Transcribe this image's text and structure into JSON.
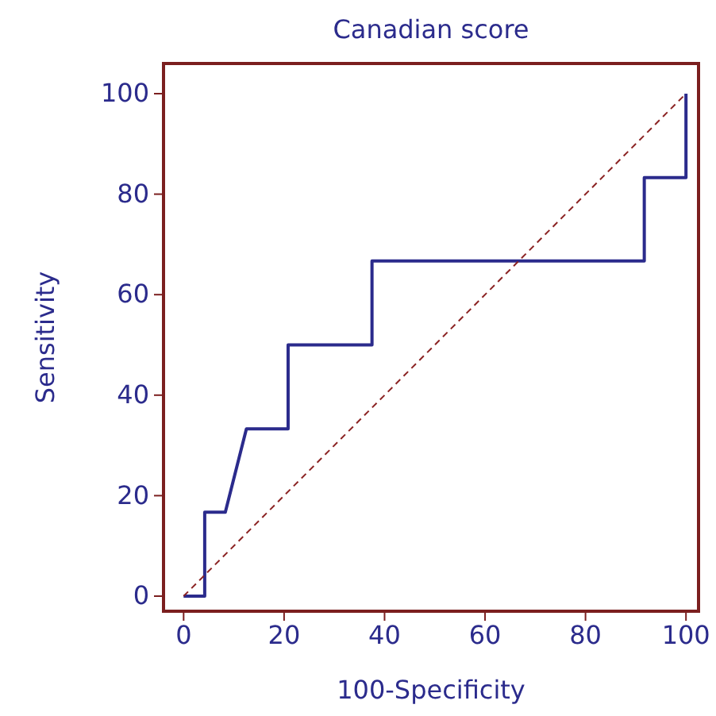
{
  "chart_data": {
    "type": "line",
    "title": "Canadian score",
    "xlabel": "100-Specificity",
    "ylabel": "Sensitivity",
    "xlim": [
      -4,
      102.5
    ],
    "ylim": [
      -3,
      106
    ],
    "xticks": [
      0,
      20,
      40,
      60,
      80,
      100
    ],
    "yticks": [
      0,
      20,
      40,
      60,
      80,
      100
    ],
    "marker": "none",
    "series": [
      {
        "color": "#2b2b8c",
        "line_style": "solid",
        "x": [
          0,
          4.2,
          4.2,
          8.3,
          12.5,
          20.8,
          20.8,
          37.5,
          37.5,
          91.7,
          91.7,
          100,
          100
        ],
        "values": [
          0,
          0,
          16.7,
          16.7,
          33.3,
          33.3,
          50,
          50,
          66.7,
          66.7,
          83.3,
          83.3,
          100
        ]
      },
      {
        "color": "#8b2323",
        "line_style": "dashed",
        "x": [
          0,
          100
        ],
        "values": [
          0,
          100
        ]
      }
    ]
  }
}
